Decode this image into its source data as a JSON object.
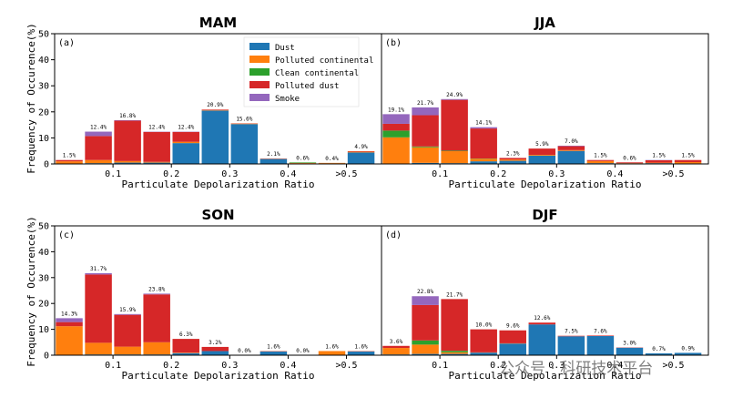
{
  "colors": {
    "Dust": "#1f77b4",
    "Polluted continental": "#ff7f0e",
    "Clean continental": "#2ca02c",
    "Polluted dust": "#d62728",
    "Smoke": "#9467bd"
  },
  "legend": [
    "Dust",
    "Polluted continental",
    "Clean continental",
    "Polluted dust",
    "Smoke"
  ],
  "shared": {
    "ylabel": "Frequency of Occurence(%)",
    "xlabel": "Particulate Depolarization Ratio",
    "yticks": [
      "0",
      "10",
      "20",
      "30",
      "40",
      "50"
    ],
    "xticks": [
      {
        "value": 0.1,
        "label": "0.1"
      },
      {
        "value": 0.2,
        "label": "0.2"
      },
      {
        "value": 0.3,
        "label": "0.3"
      },
      {
        "value": 0.4,
        "label": "0.4"
      },
      {
        "value": 0.5,
        "label": ">0.5"
      }
    ]
  },
  "watermark": "公众号 · 科研技术平台",
  "chart_data": [
    {
      "type": "bar",
      "stacked": true,
      "title": "MAM",
      "panel": "(a)",
      "xlabel": "Particulate Depolarization Ratio",
      "ylabel": "Frequency of Occurence(%)",
      "ylim": [
        0,
        50
      ],
      "x": [
        0.025,
        0.075,
        0.125,
        0.175,
        0.225,
        0.275,
        0.325,
        0.375,
        0.425,
        0.475,
        0.525
      ],
      "series": [
        {
          "name": "Dust",
          "values": [
            0,
            0.3,
            0.5,
            0.5,
            8.0,
            20.5,
            15.3,
            1.9,
            0.2,
            0.2,
            4.4
          ]
        },
        {
          "name": "Polluted continental",
          "values": [
            1.0,
            1.2,
            0.6,
            0.3,
            0.5,
            0.2,
            0.2,
            0.1,
            0.2,
            0.2,
            0.3
          ]
        },
        {
          "name": "Clean continental",
          "values": [
            0,
            0,
            0,
            0,
            0,
            0,
            0,
            0,
            0.2,
            0,
            0
          ]
        },
        {
          "name": "Polluted dust",
          "values": [
            0.5,
            9.2,
            15.5,
            11.5,
            3.8,
            0.2,
            0.1,
            0.1,
            0,
            0,
            0.2
          ]
        },
        {
          "name": "Smoke",
          "values": [
            0,
            1.7,
            0.2,
            0.1,
            0.1,
            0,
            0,
            0,
            0,
            0,
            0
          ]
        }
      ],
      "bar_labels": [
        "1.5%",
        "12.4%",
        "16.8%",
        "12.4%",
        "12.4%",
        "20.9%",
        "15.6%",
        "2.1%",
        "0.6%",
        "0.4%",
        "4.9%"
      ]
    },
    {
      "type": "bar",
      "stacked": true,
      "title": "JJA",
      "panel": "(b)",
      "xlabel": "Particulate Depolarization Ratio",
      "ylabel": "Frequency of Occurence(%)",
      "ylim": [
        0,
        50
      ],
      "x": [
        0.025,
        0.075,
        0.125,
        0.175,
        0.225,
        0.275,
        0.325,
        0.375,
        0.425,
        0.475,
        0.525
      ],
      "series": [
        {
          "name": "Dust",
          "values": [
            0,
            0.4,
            0.3,
            1.0,
            1.2,
            3.2,
            5.0,
            0.3,
            0.2,
            0.3,
            0.2
          ]
        },
        {
          "name": "Polluted continental",
          "values": [
            10.2,
            6.0,
            4.6,
            1.0,
            0.5,
            0.3,
            0.3,
            0.8,
            0.1,
            0.2,
            0.5
          ]
        },
        {
          "name": "Clean continental",
          "values": [
            2.6,
            0.3,
            0.2,
            0.1,
            0,
            0,
            0,
            0,
            0,
            0,
            0
          ]
        },
        {
          "name": "Polluted dust",
          "values": [
            2.6,
            12.0,
            19.5,
            11.5,
            0.6,
            2.4,
            1.5,
            0.4,
            0.3,
            0.9,
            0.8
          ]
        },
        {
          "name": "Smoke",
          "values": [
            3.7,
            3.0,
            0.3,
            0.5,
            0,
            0,
            0.2,
            0,
            0,
            0.1,
            0
          ]
        }
      ],
      "bar_labels": [
        "19.1%",
        "21.7%",
        "24.9%",
        "14.1%",
        "2.3%",
        "5.9%",
        "7.0%",
        "1.5%",
        "0.6%",
        "1.5%",
        "1.5%"
      ]
    },
    {
      "type": "bar",
      "stacked": true,
      "title": "SON",
      "panel": "(c)",
      "xlabel": "Particulate Depolarization Ratio",
      "ylabel": "Frequency of Occurence(%)",
      "ylim": [
        0,
        50
      ],
      "x": [
        0.025,
        0.075,
        0.125,
        0.175,
        0.225,
        0.275,
        0.325,
        0.375,
        0.425,
        0.475,
        0.525
      ],
      "series": [
        {
          "name": "Dust",
          "values": [
            0,
            0.3,
            0.3,
            0.3,
            0.8,
            1.6,
            0,
            1.4,
            0,
            0.1,
            1.4
          ]
        },
        {
          "name": "Polluted continental",
          "values": [
            11.2,
            4.5,
            3.0,
            4.7,
            0.2,
            0,
            0,
            0.1,
            0,
            1.5,
            0.1
          ]
        },
        {
          "name": "Clean continental",
          "values": [
            0,
            0,
            0,
            0,
            0,
            0,
            0,
            0,
            0,
            0,
            0
          ]
        },
        {
          "name": "Polluted dust",
          "values": [
            1.6,
            26.4,
            12.3,
            18.5,
            5.3,
            1.6,
            0,
            0.1,
            0,
            0,
            0.1
          ]
        },
        {
          "name": "Smoke",
          "values": [
            1.5,
            0.5,
            0.3,
            0.3,
            0,
            0,
            0,
            0,
            0,
            0,
            0
          ]
        }
      ],
      "bar_labels": [
        "14.3%",
        "31.7%",
        "15.9%",
        "23.8%",
        "6.3%",
        "3.2%",
        "0.0%",
        "1.6%",
        "0.0%",
        "1.6%",
        "1.6%"
      ]
    },
    {
      "type": "bar",
      "stacked": true,
      "title": "DJF",
      "panel": "(d)",
      "xlabel": "Particulate Depolarization Ratio",
      "ylabel": "Frequency of Occurence(%)",
      "ylim": [
        0,
        50
      ],
      "x": [
        0.025,
        0.075,
        0.125,
        0.175,
        0.225,
        0.275,
        0.325,
        0.375,
        0.425,
        0.475,
        0.525
      ],
      "series": [
        {
          "name": "Dust",
          "values": [
            0.3,
            0.5,
            0.5,
            1.0,
            4.5,
            11.9,
            7.3,
            7.4,
            2.9,
            0.7,
            0.9
          ]
        },
        {
          "name": "Polluted continental",
          "values": [
            2.5,
            3.6,
            0.6,
            0.1,
            0.1,
            0,
            0,
            0,
            0,
            0,
            0
          ]
        },
        {
          "name": "Clean continental",
          "values": [
            0,
            1.6,
            0.6,
            0,
            0,
            0,
            0,
            0,
            0,
            0,
            0
          ]
        },
        {
          "name": "Polluted dust",
          "values": [
            0.8,
            13.7,
            20.0,
            8.9,
            5.0,
            0.7,
            0.2,
            0.2,
            0.1,
            0,
            0
          ]
        },
        {
          "name": "Smoke",
          "values": [
            0,
            3.4,
            0,
            0,
            0,
            0,
            0,
            0,
            0,
            0,
            0
          ]
        }
      ],
      "bar_labels": [
        "3.6%",
        "22.8%",
        "21.7%",
        "10.0%",
        "9.6%",
        "12.6%",
        "7.5%",
        "7.6%",
        "3.0%",
        "0.7%",
        "0.9%"
      ]
    }
  ]
}
